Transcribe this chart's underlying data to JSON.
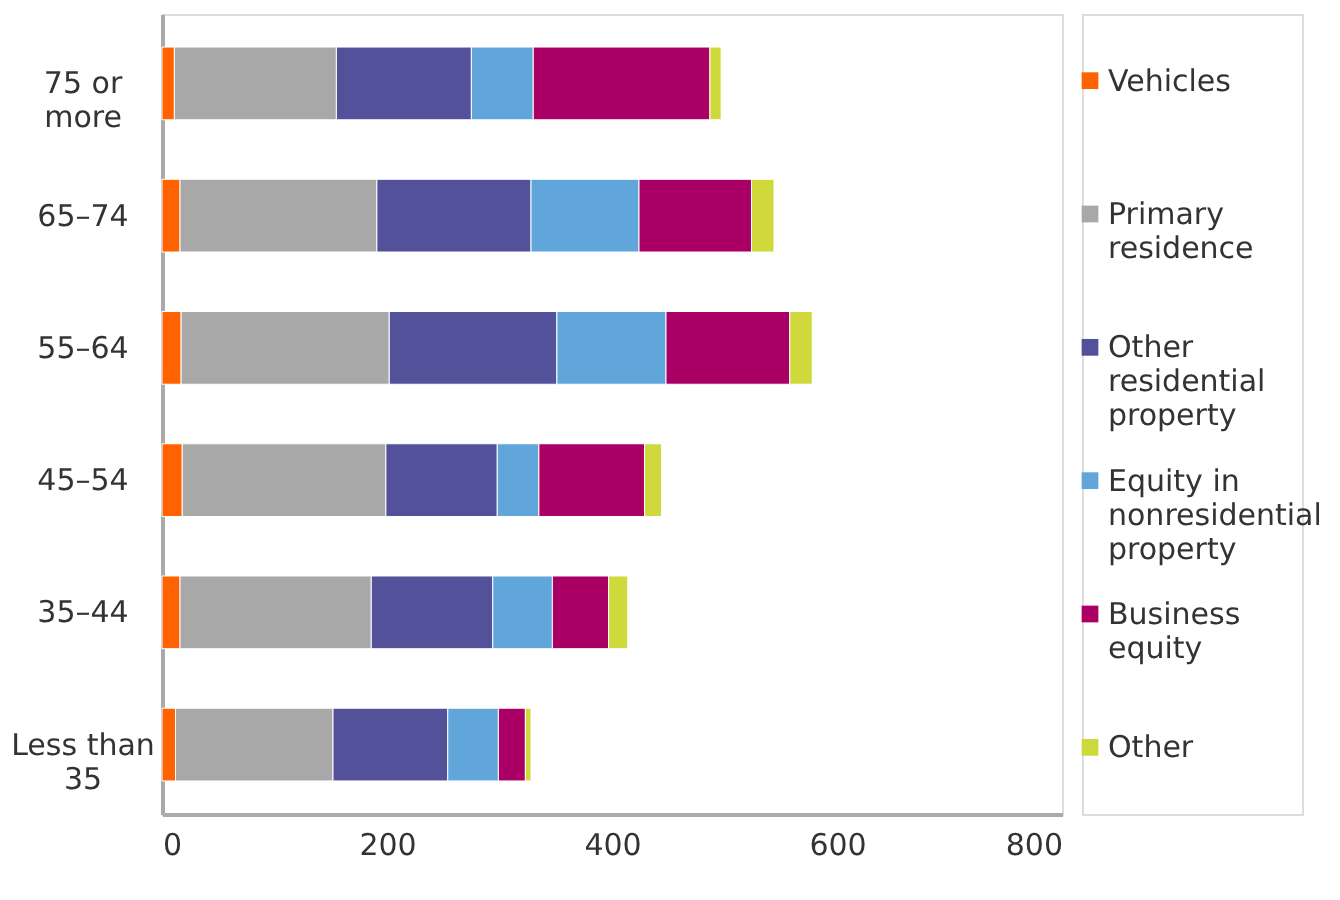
{
  "chart_data": {
    "type": "bar",
    "orientation": "horizontal",
    "stacked": true,
    "legend": "right",
    "grid": false,
    "categories": [
      "75 or more",
      "65–74",
      "55–64",
      "45–54",
      "35–44",
      "Less than 35"
    ],
    "series": [
      {
        "name": "Vehicles",
        "color": "#ff6200",
        "values": [
          11,
          16,
          17,
          18,
          16,
          12
        ]
      },
      {
        "name": "Primary residence",
        "color": "#a8a8a8",
        "values": [
          144,
          175,
          185,
          181,
          170,
          140
        ]
      },
      {
        "name": "Other residential property",
        "color": "#525199",
        "values": [
          120,
          137,
          149,
          99,
          108,
          102
        ]
      },
      {
        "name": "Equity in nonresidential property",
        "color": "#60a6da",
        "values": [
          55,
          96,
          97,
          37,
          53,
          45
        ]
      },
      {
        "name": "Business equity",
        "color": "#aa0066",
        "values": [
          157,
          100,
          110,
          94,
          50,
          24
        ]
      },
      {
        "name": "Other",
        "color": "#d0d93c",
        "values": [
          10,
          20,
          20,
          15,
          17,
          5
        ]
      }
    ],
    "xlim": [
      0,
      800
    ],
    "xticks": [
      0,
      200,
      400,
      600,
      800
    ]
  }
}
